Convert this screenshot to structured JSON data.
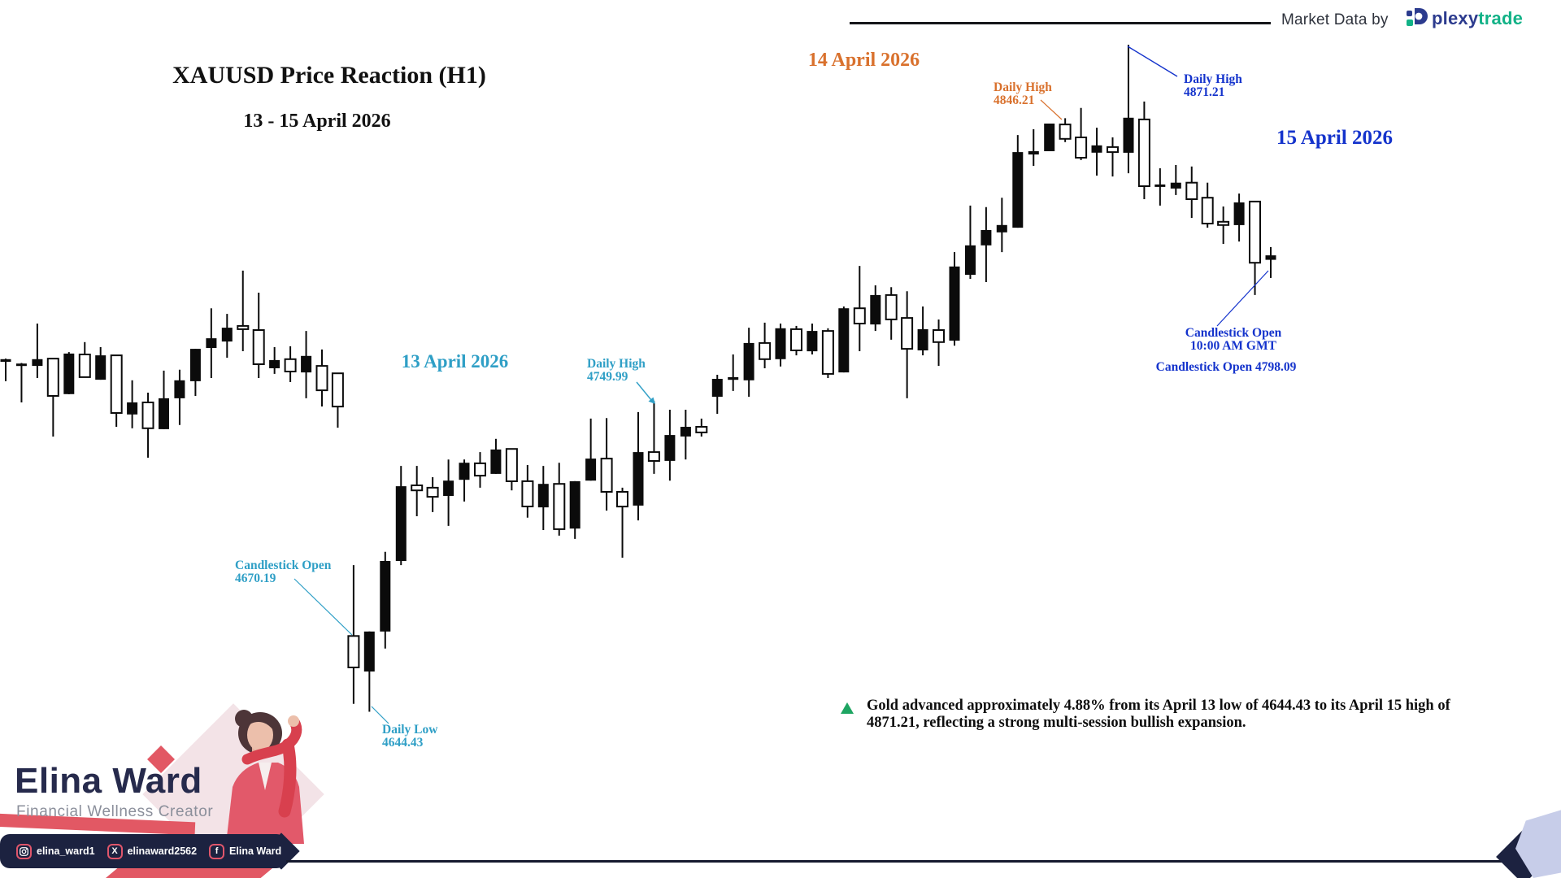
{
  "header": {
    "market_data_label": "Market Data by",
    "brand": {
      "name_primary": "plexy",
      "name_secondary": "trade"
    }
  },
  "title": {
    "main": "XAUUSD Price Reaction (H1)",
    "subtitle": "13 - 15 April 2026"
  },
  "session_labels": [
    {
      "text": "13 April 2026",
      "color": "#2f9fc6"
    },
    {
      "text": "14 April 2026",
      "color": "#d9712d"
    },
    {
      "text": "15 April 2026",
      "color": "#1433cc"
    }
  ],
  "annotations": {
    "daily_high_apr13": {
      "line1": "Daily High",
      "line2": "4749.99",
      "color": "#2f9fc6"
    },
    "candlestick_open_apr13": {
      "line1": "Candlestick Open",
      "line2": "4670.19",
      "color": "#2f9fc6"
    },
    "daily_low_apr13": {
      "line1": "Daily Low",
      "line2": "4644.43",
      "color": "#2f9fc6"
    },
    "daily_high_apr14": {
      "line1": "Daily High",
      "line2": "4846.21",
      "color": "#d9712d"
    },
    "daily_high_apr15": {
      "line1": "Daily High",
      "line2": "4871.21",
      "color": "#1433cc"
    },
    "candlestick_open_apr15": {
      "line1": "Candlestick Open",
      "line2": "10:00 AM GMT",
      "line3": "Candlestick Open 4798.09",
      "color": "#1433cc"
    }
  },
  "note": {
    "bullet_color": "#1ea562",
    "line1": "Gold advanced approximately 4.88% from its April 13 low of 4644.43 to its April 15 high of",
    "line2": "4871.21, reflecting a strong multi-session bullish expansion."
  },
  "creator": {
    "name": "Elina Ward",
    "role": "Financial Wellness Creator",
    "socials": [
      {
        "network": "instagram",
        "handle": "elina_ward1"
      },
      {
        "network": "x",
        "handle": "elinaward2562"
      },
      {
        "network": "facebook",
        "handle": "Elina Ward"
      }
    ]
  },
  "palette": {
    "teal": "#2f9fc6",
    "orange": "#d9712d",
    "blue": "#1433cc",
    "green": "#1ea562",
    "coral": "#e25864",
    "navy": "#1c2240",
    "lavender": "#c7cde9",
    "candle": "#0b0b0b"
  },
  "chart_data": {
    "type": "candlestick",
    "symbol": "XAUUSD",
    "timeframe": "H1",
    "title": "XAUUSD Price Reaction (H1)",
    "date_range": "13 - 15 April 2026",
    "price_range": [
      4640,
      4875
    ],
    "up_style": "filled-black",
    "down_style": "hollow-white",
    "key_levels": {
      "apr13_open": 4670.19,
      "apr13_low": 4644.43,
      "apr13_high": 4749.99,
      "apr14_high": 4846.21,
      "apr15_high": 4871.21,
      "apr15_candle_open": 4798.09,
      "advance_pct": 4.88
    },
    "candles": [
      [
        4763.4,
        4764.5,
        4756.8,
        4764.3
      ],
      [
        4762.0,
        4763.0,
        4749.6,
        4762.8
      ],
      [
        4762.0,
        4776.4,
        4757.9,
        4764.3
      ],
      [
        4764.5,
        4764.5,
        4738.0,
        4751.8
      ],
      [
        4752.4,
        4766.7,
        4752.4,
        4766.2
      ],
      [
        4765.9,
        4770.1,
        4758.2,
        4758.2
      ],
      [
        4757.3,
        4768.4,
        4757.3,
        4765.6
      ],
      [
        4765.6,
        4765.6,
        4741.3,
        4746.0
      ],
      [
        4745.5,
        4757.1,
        4740.8,
        4749.6
      ],
      [
        4749.6,
        4752.9,
        4730.8,
        4740.8
      ],
      [
        4740.5,
        4760.4,
        4740.5,
        4751.0
      ],
      [
        4751.0,
        4760.7,
        4741.9,
        4757.1
      ],
      [
        4756.8,
        4767.8,
        4751.8,
        4767.8
      ],
      [
        4768.1,
        4781.6,
        4757.9,
        4771.4
      ],
      [
        4770.3,
        4779.7,
        4764.8,
        4775.0
      ],
      [
        4775.6,
        4794.4,
        4767.0,
        4774.5
      ],
      [
        4774.2,
        4786.9,
        4757.9,
        4762.6
      ],
      [
        4761.2,
        4768.4,
        4759.3,
        4764.0
      ],
      [
        4764.3,
        4768.7,
        4756.5,
        4760.1
      ],
      [
        4759.8,
        4773.9,
        4751.0,
        4765.4
      ],
      [
        4762.0,
        4767.6,
        4748.2,
        4753.7
      ],
      [
        4759.5,
        4759.5,
        4741.0,
        4748.2
      ],
      [
        4670.19,
        4694.3,
        4647.1,
        4659.5
      ],
      [
        4658.1,
        4671.7,
        4644.43,
        4671.7
      ],
      [
        4671.7,
        4698.8,
        4665.9,
        4695.7
      ],
      [
        4695.7,
        4728.0,
        4694.3,
        4721.1
      ],
      [
        4721.4,
        4728.0,
        4710.9,
        4719.7
      ],
      [
        4720.6,
        4724.2,
        4712.3,
        4717.5
      ],
      [
        4717.8,
        4730.2,
        4707.6,
        4723.0
      ],
      [
        4723.3,
        4730.2,
        4715.9,
        4729.1
      ],
      [
        4728.9,
        4732.7,
        4720.6,
        4724.7
      ],
      [
        4725.3,
        4737.2,
        4725.3,
        4733.6
      ],
      [
        4733.8,
        4733.8,
        4719.7,
        4722.8
      ],
      [
        4722.8,
        4728.3,
        4710.4,
        4714.2
      ],
      [
        4713.9,
        4728.0,
        4706.2,
        4721.9
      ],
      [
        4721.9,
        4729.1,
        4704.3,
        4706.5
      ],
      [
        4706.7,
        4722.8,
        4703.2,
        4722.8
      ],
      [
        4723.0,
        4744.1,
        4723.0,
        4730.5
      ],
      [
        4730.5,
        4744.3,
        4712.8,
        4719.2
      ],
      [
        4719.2,
        4720.6,
        4696.8,
        4714.2
      ],
      [
        4714.5,
        4746.3,
        4709.5,
        4732.7
      ],
      [
        4732.7,
        4749.99,
        4725.3,
        4729.7
      ],
      [
        4729.7,
        4747.1,
        4723.0,
        4738.5
      ],
      [
        4738.0,
        4747.1,
        4730.2,
        4741.3
      ],
      [
        4741.3,
        4744.1,
        4738.0,
        4739.4
      ],
      [
        4751.5,
        4759.0,
        4745.7,
        4757.6
      ],
      [
        4757.3,
        4765.9,
        4753.5,
        4758.2
      ],
      [
        4757.1,
        4775.0,
        4751.5,
        4769.8
      ],
      [
        4769.8,
        4776.7,
        4761.2,
        4764.3
      ],
      [
        4764.3,
        4776.4,
        4761.8,
        4774.8
      ],
      [
        4774.5,
        4775.6,
        4765.6,
        4767.3
      ],
      [
        4767.0,
        4776.4,
        4765.9,
        4773.9
      ],
      [
        4773.9,
        4774.8,
        4757.9,
        4759.3
      ],
      [
        4759.8,
        4782.2,
        4759.8,
        4781.6
      ],
      [
        4781.6,
        4796.0,
        4767.0,
        4776.4
      ],
      [
        4776.1,
        4789.4,
        4773.9,
        4786.1
      ],
      [
        4786.1,
        4788.8,
        4770.9,
        4777.8
      ],
      [
        4778.3,
        4787.4,
        4751.0,
        4767.8
      ],
      [
        4767.3,
        4782.2,
        4765.6,
        4774.5
      ],
      [
        4774.2,
        4777.8,
        4762.0,
        4770.1
      ],
      [
        4770.6,
        4800.7,
        4768.9,
        4795.8
      ],
      [
        4793.0,
        4816.5,
        4791.6,
        4803.0
      ],
      [
        4803.0,
        4816.0,
        4790.5,
        4808.2
      ],
      [
        4807.4,
        4819.2,
        4800.7,
        4809.9
      ],
      [
        4809.0,
        4840.5,
        4809.0,
        4834.7
      ],
      [
        4833.9,
        4842.5,
        4830.0,
        4835.0
      ],
      [
        4835.0,
        4844.4,
        4835.0,
        4844.4
      ],
      [
        4844.1,
        4846.21,
        4838.1,
        4839.2
      ],
      [
        4839.7,
        4849.7,
        4832.0,
        4832.8
      ],
      [
        4834.5,
        4843.0,
        4826.7,
        4837.0
      ],
      [
        4836.4,
        4839.7,
        4826.4,
        4834.7
      ],
      [
        4834.5,
        4871.21,
        4827.5,
        4846.4
      ],
      [
        4845.8,
        4851.9,
        4818.7,
        4823.1
      ],
      [
        4823.1,
        4829.2,
        4816.5,
        4823.7
      ],
      [
        4822.3,
        4830.3,
        4820.1,
        4824.3
      ],
      [
        4824.3,
        4829.8,
        4812.3,
        4818.7
      ],
      [
        4819.2,
        4824.3,
        4809.0,
        4810.4
      ],
      [
        4811.0,
        4816.2,
        4803.5,
        4809.9
      ],
      [
        4809.9,
        4820.6,
        4804.3,
        4817.6
      ],
      [
        4817.9,
        4817.9,
        4786.1,
        4797.1
      ],
      [
        4798.09,
        4802.4,
        4791.9,
        4799.6
      ]
    ]
  }
}
